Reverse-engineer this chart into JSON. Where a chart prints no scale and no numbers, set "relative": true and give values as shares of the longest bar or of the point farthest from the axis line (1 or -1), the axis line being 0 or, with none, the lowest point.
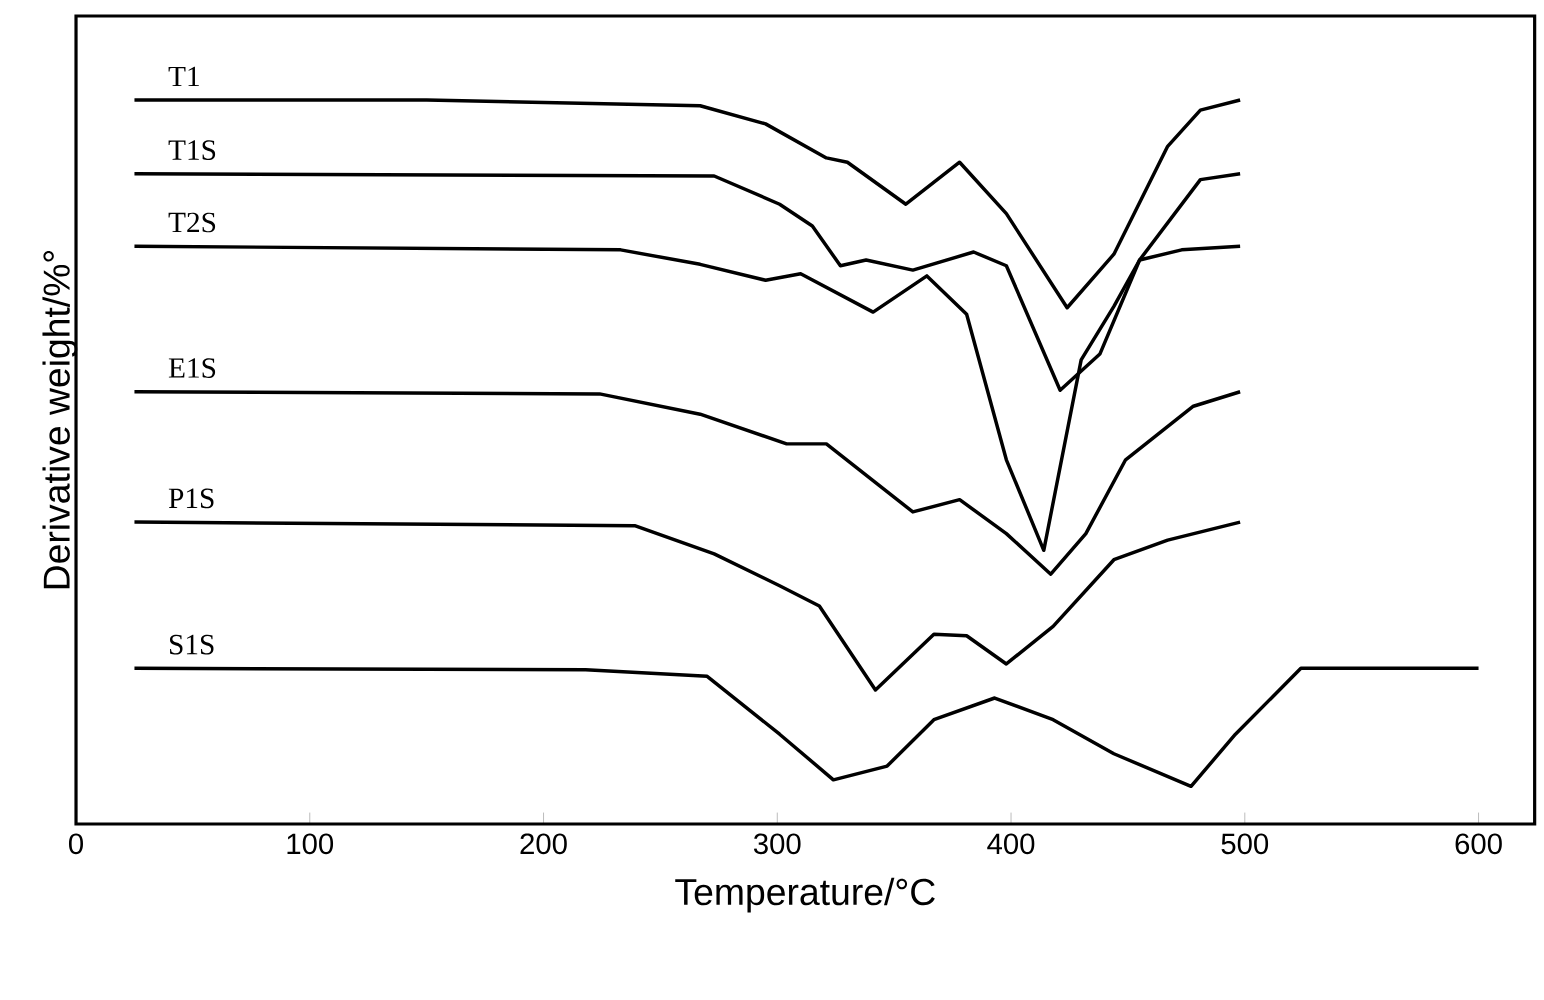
{
  "chart_data": {
    "type": "line",
    "relative": true,
    "xlabel": "Temperature/°C",
    "ylabel": "Derivative weight/%°",
    "xlim": [
      0,
      624
    ],
    "xticks": [
      0,
      100,
      200,
      300,
      400,
      500,
      600
    ],
    "grid": false,
    "series": [
      {
        "name": "T1",
        "color": "#000000",
        "x": [
          25,
          150,
          267,
          295,
          321,
          330,
          355,
          378,
          398,
          424,
          444,
          467,
          481,
          498
        ],
        "values": [
          1.0,
          1.0,
          0.992,
          0.967,
          0.92,
          0.914,
          0.856,
          0.914,
          0.843,
          0.713,
          0.787,
          0.936,
          0.986,
          1.0
        ]
      },
      {
        "name": "T1S",
        "color": "#000000",
        "x": [
          25,
          273,
          301,
          315,
          327,
          338,
          358,
          384,
          398,
          421,
          438,
          455,
          481,
          498
        ],
        "values": [
          0.898,
          0.895,
          0.856,
          0.826,
          0.771,
          0.779,
          0.765,
          0.79,
          0.771,
          0.599,
          0.649,
          0.779,
          0.89,
          0.898
        ]
      },
      {
        "name": "T2S",
        "color": "#000000",
        "x": [
          25,
          233,
          267,
          295,
          310,
          341,
          364,
          381,
          398,
          414,
          430,
          444,
          455,
          473,
          498
        ],
        "values": [
          0.798,
          0.793,
          0.773,
          0.751,
          0.76,
          0.707,
          0.757,
          0.704,
          0.503,
          0.378,
          0.641,
          0.715,
          0.779,
          0.793,
          0.798
        ]
      },
      {
        "name": "E1S",
        "color": "#000000",
        "x": [
          25,
          224,
          267,
          304,
          321,
          358,
          378,
          398,
          417,
          432,
          449,
          478,
          498
        ],
        "values": [
          0.597,
          0.594,
          0.566,
          0.525,
          0.525,
          0.431,
          0.448,
          0.401,
          0.345,
          0.401,
          0.503,
          0.577,
          0.597
        ]
      },
      {
        "name": "P1S",
        "color": "#000000",
        "x": [
          25,
          239,
          273,
          301,
          318,
          342,
          367,
          381,
          398,
          418,
          444,
          467,
          498
        ],
        "values": [
          0.417,
          0.412,
          0.373,
          0.329,
          0.301,
          0.185,
          0.262,
          0.26,
          0.221,
          0.273,
          0.365,
          0.392,
          0.417
        ]
      },
      {
        "name": "S1S",
        "color": "#000000",
        "x": [
          25,
          218,
          270,
          301,
          324,
          347,
          367,
          393,
          418,
          444,
          477,
          496,
          524,
          600
        ],
        "values": [
          0.215,
          0.213,
          0.204,
          0.124,
          0.061,
          0.08,
          0.144,
          0.174,
          0.144,
          0.097,
          0.052,
          0.124,
          0.215,
          0.215
        ]
      }
    ]
  }
}
